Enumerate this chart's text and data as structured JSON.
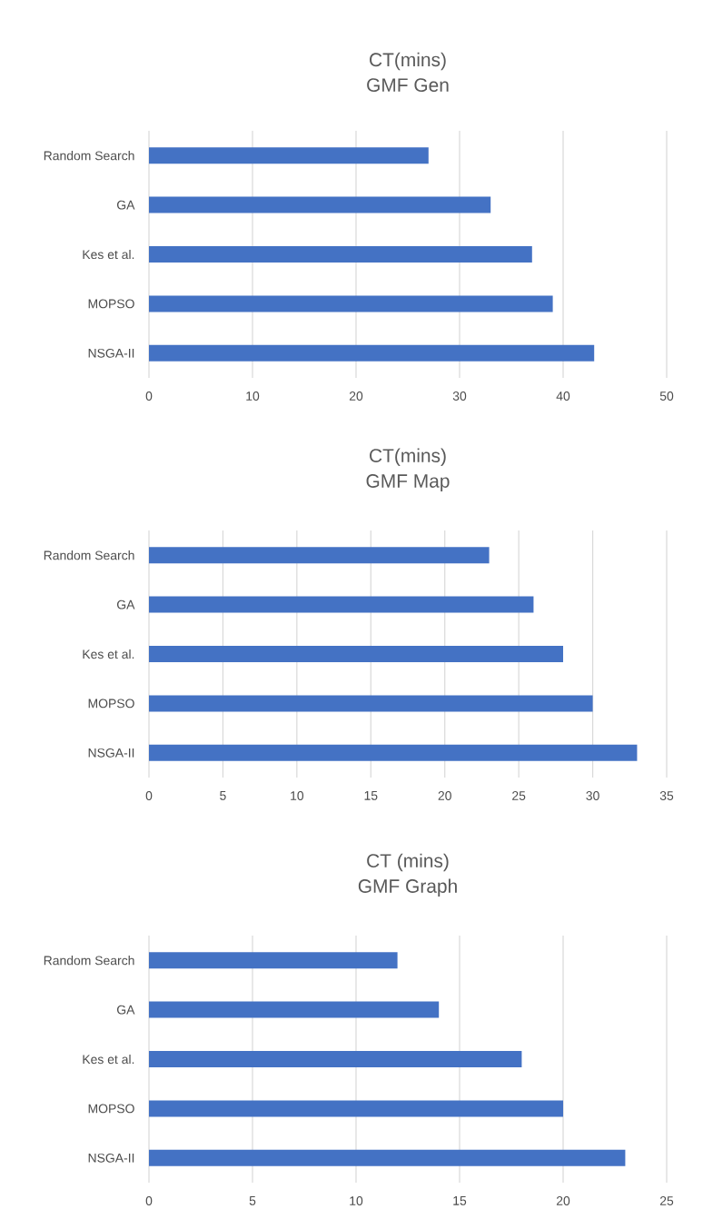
{
  "chart_data": [
    {
      "type": "bar",
      "orientation": "horizontal",
      "title": "CT(mins)",
      "subtitle": "GMF Gen",
      "categories": [
        "Random Search",
        "GA",
        "Kes et al.",
        "MOPSO",
        "NSGA-II"
      ],
      "values": [
        27,
        33,
        37,
        39,
        43
      ],
      "color": "#4472c4",
      "xlim": [
        0,
        50
      ],
      "xticks": [
        0,
        10,
        20,
        30,
        40,
        50
      ],
      "grid": "x"
    },
    {
      "type": "bar",
      "orientation": "horizontal",
      "title": "CT(mins)",
      "subtitle": "GMF Map",
      "categories": [
        "Random Search",
        "GA",
        "Kes et al.",
        "MOPSO",
        "NSGA-II"
      ],
      "values": [
        23,
        26,
        28,
        30,
        33
      ],
      "color": "#4472c4",
      "xlim": [
        0,
        35
      ],
      "xticks": [
        0,
        5,
        10,
        15,
        20,
        25,
        30,
        35
      ],
      "grid": "x"
    },
    {
      "type": "bar",
      "orientation": "horizontal",
      "title": "CT (mins)",
      "subtitle": "GMF Graph",
      "categories": [
        "Random Search",
        "GA",
        "Kes et al.",
        "MOPSO",
        "NSGA-II"
      ],
      "values": [
        12,
        14,
        18,
        20,
        23
      ],
      "color": "#4472c4",
      "xlim": [
        0,
        25
      ],
      "xticks": [
        0,
        5,
        10,
        15,
        20,
        25
      ],
      "grid": "x"
    }
  ]
}
